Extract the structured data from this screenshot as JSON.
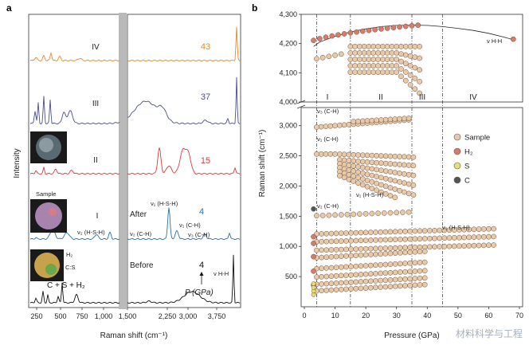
{
  "panel_a": {
    "label": "a",
    "ylabel": "Intensity",
    "xlabel": "Raman shift (cm⁻¹)",
    "xticks": [
      "250",
      "500",
      "750",
      "1,000",
      "1,250",
      "1,500",
      "2,250",
      "2,500",
      "2,750",
      "3,000",
      "3,250",
      "3,500",
      "3,750"
    ],
    "traces": [
      {
        "phase": "IV",
        "pressure": "43",
        "color": "#e08a2a"
      },
      {
        "phase": "III",
        "pressure": "37",
        "color": "#4b4f8c"
      },
      {
        "phase": "II",
        "pressure": "15",
        "color": "#d63b3b"
      },
      {
        "phase": "I",
        "pressure": "4",
        "color": "#2a6fa8"
      },
      {
        "phase": "",
        "pressure": "4",
        "color": "#111111"
      }
    ],
    "labels": {
      "after": "After",
      "before": "Before",
      "sample": "Sample",
      "h2": "H₂",
      "cs": "C:S",
      "reactants": "C + S + H₂",
      "p_gpa": "P (GPa)",
      "nu1_hsh": "ν₁ (H-S-H)",
      "nu2_hsh": "ν₂ (H-S-H)",
      "nu2_ch": "ν₂ (C-H)",
      "nu1_ch": "ν₁ (C-H)",
      "nu3_ch": "ν₃ (C-H)",
      "nu_hh": "ν H-H"
    }
  },
  "panel_b": {
    "label": "b",
    "ylabel": "Raman shift (cm⁻¹)",
    "xlabel": "Pressure (GPa)",
    "xticks": [
      "0",
      "10",
      "20",
      "30",
      "40",
      "50",
      "60",
      "70"
    ],
    "yticks_upper": [
      "4,000",
      "4,100",
      "4,200",
      "4,300"
    ],
    "yticks_lower": [
      "500",
      "1,000",
      "1,500",
      "2,000",
      "2,500",
      "3,000"
    ],
    "phases": [
      "I",
      "II",
      "III",
      "IV"
    ],
    "phase_boundaries_gpa": [
      4,
      15,
      35,
      45
    ],
    "annotations": {
      "nu3_ch": "ν₃ (C-H)",
      "nu1_ch": "ν₁ (C-H)",
      "nu1_hsh": "ν₁ (H-S-H)",
      "nu2_ch": "ν₂ (C-H)",
      "nu2_hsh": "ν₂ (H-S-H)",
      "nu_hh": "ν H-H"
    },
    "legend": [
      {
        "name": "Sample",
        "color": "#e8c9a8"
      },
      {
        "name": "H₂",
        "color": "#d97a6a"
      },
      {
        "name": "S",
        "color": "#e6e070"
      },
      {
        "name": "C",
        "color": "#555555"
      }
    ]
  },
  "chart_data": [
    {
      "type": "line",
      "title": "",
      "xlabel": "Raman shift (cm⁻¹)",
      "ylabel": "Intensity",
      "xlim": [
        150,
        4050
      ],
      "series": [
        {
          "name": "IV",
          "pressure_gpa": 43
        },
        {
          "name": "III",
          "pressure_gpa": 37
        },
        {
          "name": "II",
          "pressure_gpa": 15
        },
        {
          "name": "I",
          "pressure_gpa": 4
        },
        {
          "name": "",
          "pressure_gpa": 4
        }
      ]
    },
    {
      "type": "scatter",
      "title": "",
      "xlabel": "Pressure (GPa)",
      "ylabel": "Raman shift (cm⁻¹)",
      "xlim": [
        0,
        70
      ],
      "ylim_upper": [
        4000,
        4300
      ],
      "ylim_lower": [
        0,
        3300
      ],
      "series": [
        {
          "name": "H₂",
          "x": [
            3,
            5,
            10,
            15,
            20,
            25,
            30,
            35,
            40,
            45,
            50,
            55,
            60,
            65,
            68
          ],
          "y": [
            4190,
            4205,
            4225,
            4240,
            4250,
            4258,
            4262,
            4263,
            4262,
            4258,
            4252,
            4245,
            4235,
            4222,
            4213
          ]
        },
        {
          "name": "Sample",
          "x": [
            4,
            6,
            8,
            10,
            12,
            14,
            16,
            18,
            20,
            22,
            24,
            26,
            28,
            30,
            32,
            34
          ],
          "y": [
            2960,
            2970,
            2980,
            2990,
            3000,
            3010,
            3020,
            3030,
            3040,
            3050,
            3060,
            3065,
            3070,
            3075,
            3080,
            3090
          ]
        },
        {
          "name": "S",
          "x": [
            3,
            3,
            3,
            3
          ],
          "y": [
            120,
            180,
            240,
            300
          ]
        },
        {
          "name": "C",
          "x": [
            3
          ],
          "y": [
            1620
          ]
        }
      ]
    }
  ]
}
